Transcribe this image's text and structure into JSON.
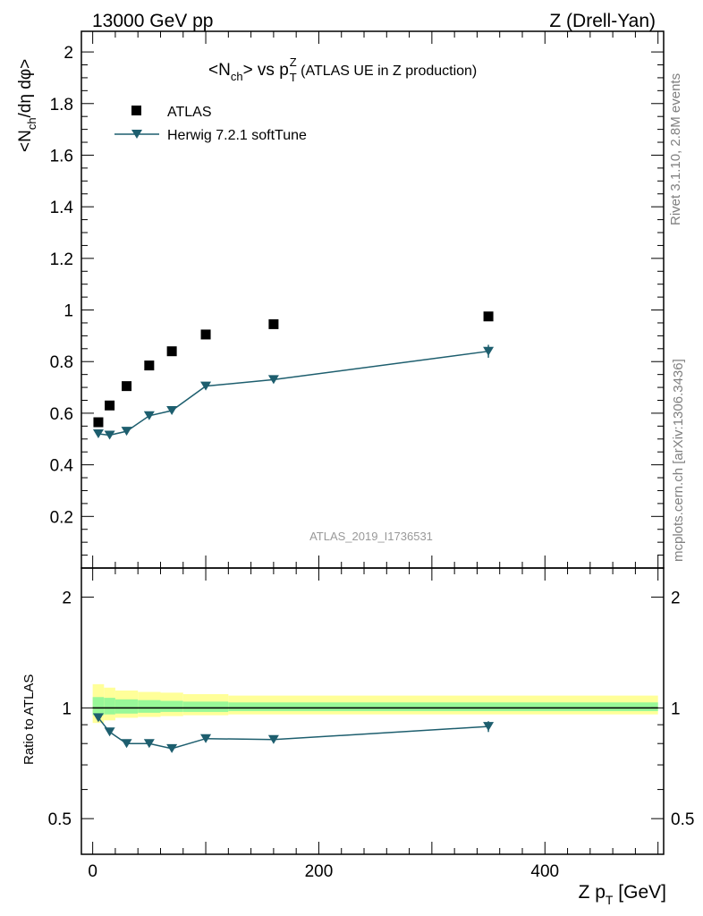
{
  "header": {
    "left": "13000 GeV pp",
    "right": "Z (Drell-Yan)"
  },
  "title": {
    "lead": "<N",
    "lead_sub": "ch",
    "mid": "> vs p",
    "sup": "Z",
    "sub": "T",
    "tail": " (ATLAS UE in Z production)"
  },
  "side_labels": {
    "rivet": "Rivet 3.1.10,  2.8M events",
    "mcplots": "mcplots.cern.ch [arXiv:1306.3436]"
  },
  "watermark": "ATLAS_2019_I1736531",
  "main_ylabel": {
    "a": "<N",
    "a_sub": "ch",
    "b": "/dη dφ>"
  },
  "ratio_ylabel": "Ratio to ATLAS",
  "xlabel": {
    "a": "Z p",
    "a_sub": "T",
    "b": " [GeV]"
  },
  "colors": {
    "data": "#000000",
    "mc": "#1d5e6e",
    "band_yellow": "#ffff99",
    "band_green": "#98f898"
  },
  "chart_data": [
    {
      "type": "scatter",
      "panel": "main",
      "xlim": [
        -10,
        505
      ],
      "ylim": [
        0,
        2.08
      ],
      "grid": false,
      "legend_position": "top-left",
      "y_ticks": [
        "0.2",
        "0.4",
        "0.6",
        "0.8",
        "1",
        "1.2",
        "1.4",
        "1.6",
        "1.8",
        "2"
      ],
      "series": [
        {
          "name": "ATLAS",
          "marker": "square",
          "x": [
            5,
            15,
            30,
            50,
            70,
            100,
            160,
            350
          ],
          "y": [
            0.565,
            0.63,
            0.705,
            0.785,
            0.84,
            0.905,
            0.945,
            0.975
          ]
        },
        {
          "name": "Herwig 7.2.1 softTune",
          "marker": "triangle-down",
          "line": true,
          "x": [
            5,
            15,
            30,
            50,
            70,
            100,
            160,
            350
          ],
          "y": [
            0.52,
            0.515,
            0.53,
            0.59,
            0.61,
            0.705,
            0.73,
            0.84
          ],
          "yerr": [
            0,
            0,
            0,
            0,
            0,
            0,
            0,
            0.025
          ]
        }
      ]
    },
    {
      "type": "line",
      "panel": "ratio",
      "xlim": [
        -10,
        505
      ],
      "ylim": [
        0.4,
        2.4
      ],
      "yscale": "log",
      "x_ticks": [
        "0",
        "200",
        "400"
      ],
      "y_ticks": [
        "0.5",
        "1",
        "2"
      ],
      "reference": 1,
      "bands": {
        "edges": [
          0,
          10,
          20,
          40,
          60,
          80,
          120,
          500
        ],
        "yellow": [
          [
            0.91,
            1.16
          ],
          [
            0.925,
            1.135
          ],
          [
            0.94,
            1.115
          ],
          [
            0.945,
            1.105
          ],
          [
            0.95,
            1.1
          ],
          [
            0.955,
            1.09
          ],
          [
            0.96,
            1.08
          ]
        ],
        "green": [
          [
            0.955,
            1.07
          ],
          [
            0.96,
            1.065
          ],
          [
            0.965,
            1.055
          ],
          [
            0.97,
            1.05
          ],
          [
            0.975,
            1.045
          ],
          [
            0.975,
            1.04
          ],
          [
            0.98,
            1.035
          ]
        ]
      },
      "series": [
        {
          "name": "Herwig 7.2.1 softTune",
          "x": [
            5,
            15,
            30,
            50,
            70,
            100,
            160,
            350
          ],
          "y": [
            0.94,
            0.86,
            0.8,
            0.8,
            0.775,
            0.825,
            0.82,
            0.89
          ],
          "yerr": [
            0,
            0,
            0,
            0,
            0,
            0,
            0,
            0.03
          ]
        }
      ]
    }
  ]
}
